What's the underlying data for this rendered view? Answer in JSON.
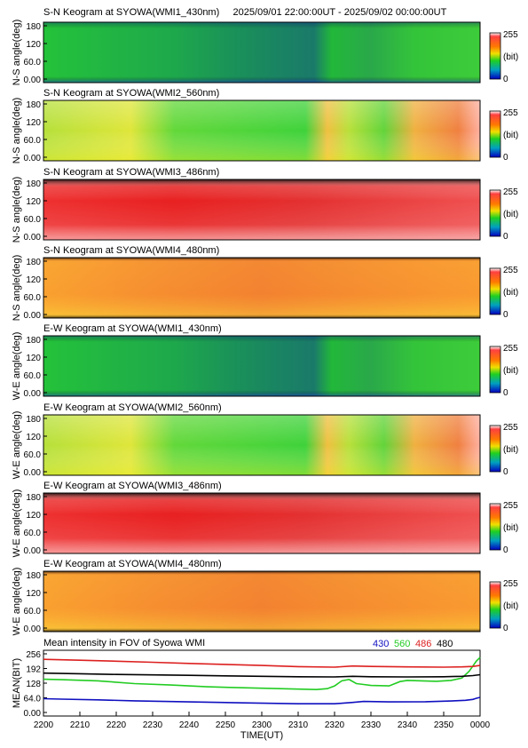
{
  "header": {
    "date_range": "2025/09/01 22:00:00UT - 2025/09/02 00:00:00UT"
  },
  "colorbar": {
    "max_label": "255",
    "min_label": "0",
    "unit_label": "(bit)"
  },
  "chart_data": [
    {
      "type": "heatmap",
      "title": "S-N Keogram at SYOWA(WMI1_430nm)",
      "ylabel": "N-S angle(deg)",
      "yticks": [
        "180",
        "120",
        "60.0",
        "0.00"
      ],
      "ylim": [
        0,
        180
      ],
      "palette": "green"
    },
    {
      "type": "heatmap",
      "title": "S-N Keogram at SYOWA(WMI2_560nm)",
      "ylabel": "N-S angle(deg)",
      "yticks": [
        "180",
        "120",
        "60.0",
        "0.00"
      ],
      "ylim": [
        0,
        180
      ],
      "palette": "yellow"
    },
    {
      "type": "heatmap",
      "title": "S-N Keogram at SYOWA(WMI3_486nm)",
      "ylabel": "N-S angle(deg)",
      "yticks": [
        "180",
        "120",
        "60.0",
        "0.00"
      ],
      "ylim": [
        0,
        180
      ],
      "palette": "red"
    },
    {
      "type": "heatmap",
      "title": "S-N Keogram at SYOWA(WMI4_480nm)",
      "ylabel": "N-S angle(deg)",
      "yticks": [
        "180",
        "120",
        "60.0",
        "0.00"
      ],
      "ylim": [
        0,
        180
      ],
      "palette": "orange"
    },
    {
      "type": "heatmap",
      "title": "E-W Keogram at SYOWA(WMI1_430nm)",
      "ylabel": "W-E angle(deg)",
      "yticks": [
        "180",
        "120",
        "60.0",
        "0.00"
      ],
      "ylim": [
        0,
        180
      ],
      "palette": "green"
    },
    {
      "type": "heatmap",
      "title": "E-W Keogram at SYOWA(WMI2_560nm)",
      "ylabel": "W-E angle(deg)",
      "yticks": [
        "180",
        "120",
        "60.0",
        "0.00"
      ],
      "ylim": [
        0,
        180
      ],
      "palette": "yellow"
    },
    {
      "type": "heatmap",
      "title": "E-W Keogram at SYOWA(WMI3_486nm)",
      "ylabel": "W-E angle(deg)",
      "yticks": [
        "180",
        "120",
        "60.0",
        "0.00"
      ],
      "ylim": [
        0,
        180
      ],
      "palette": "red"
    },
    {
      "type": "heatmap",
      "title": "E-W Keogram at SYOWA(WMI4_480nm)",
      "ylabel": "W-E angle(deg)",
      "yticks": [
        "180",
        "120",
        "60.0",
        "0.00"
      ],
      "ylim": [
        0,
        180
      ],
      "palette": "orange"
    },
    {
      "type": "line",
      "title": "Mean intensity in FOV of Syowa WMI",
      "xlabel": "TIME(UT)",
      "ylabel": "MEAN(BIT)",
      "ylim": [
        0,
        256
      ],
      "yticks": [
        "256",
        "192",
        "128",
        "64.0",
        "0.00"
      ],
      "xlim": [
        0,
        120
      ],
      "xticks": [
        "2200",
        "2210",
        "2220",
        "2230",
        "2240",
        "2250",
        "2300",
        "2310",
        "2320",
        "2330",
        "2340",
        "2350",
        "0000"
      ],
      "series": [
        {
          "name": "430",
          "color": "#1010c0",
          "x": [
            0,
            5,
            15,
            25,
            40,
            55,
            70,
            80,
            85,
            88,
            95,
            105,
            112,
            116,
            118,
            119,
            120
          ],
          "y": [
            60,
            58,
            55,
            51,
            46,
            42,
            38,
            38,
            44,
            48,
            46,
            47,
            50,
            53,
            57,
            62,
            66
          ]
        },
        {
          "name": "560",
          "color": "#22cc22",
          "x": [
            0,
            5,
            15,
            25,
            35,
            45,
            55,
            65,
            75,
            78,
            80,
            82,
            84,
            86,
            88,
            90,
            95,
            98,
            100,
            104,
            108,
            112,
            115,
            117,
            119,
            120
          ],
          "y": [
            145,
            143,
            138,
            126,
            120,
            112,
            108,
            104,
            100,
            104,
            116,
            138,
            144,
            126,
            122,
            118,
            116,
            135,
            140,
            138,
            136,
            140,
            150,
            180,
            225,
            240
          ]
        },
        {
          "name": "486",
          "color": "#dd2020",
          "x": [
            0,
            10,
            20,
            30,
            40,
            50,
            60,
            70,
            80,
            85,
            90,
            100,
            110,
            115,
            118,
            120
          ],
          "y": [
            232,
            228,
            224,
            219,
            214,
            210,
            205,
            200,
            198,
            203,
            201,
            199,
            198,
            199,
            201,
            205
          ]
        },
        {
          "name": "480",
          "color": "#000000",
          "x": [
            0,
            10,
            20,
            30,
            40,
            50,
            60,
            70,
            80,
            85,
            90,
            100,
            110,
            115,
            118,
            120
          ],
          "y": [
            172,
            169,
            166,
            164,
            162,
            160,
            158,
            156,
            155,
            158,
            156,
            155,
            156,
            158,
            161,
            165
          ]
        }
      ]
    }
  ]
}
